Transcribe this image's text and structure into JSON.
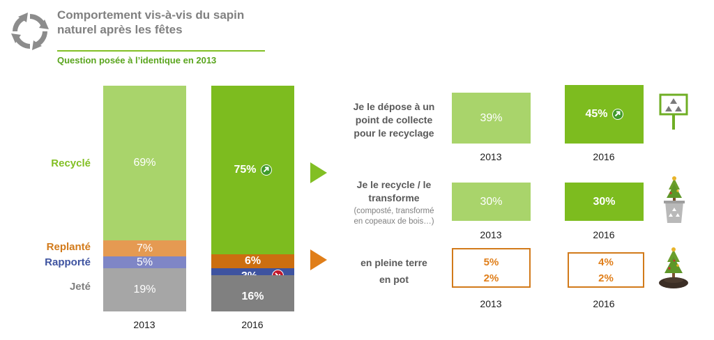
{
  "header": {
    "title_line1": "Comportement vis-à-vis du sapin",
    "title_line2": "naturel après les fêtes",
    "subtitle": "Question posée à l’identique en 2013"
  },
  "colors": {
    "recycle_2013": "#a9d46b",
    "recycle_2016": "#7dbc1f",
    "replante_2013": "#e59a52",
    "replante_2016": "#cc6e10",
    "rapporte_2013": "#7f86c6",
    "rapporte_2016": "#3e53a0",
    "jete_2013": "#a6a6a6",
    "jete_2016": "#808080",
    "arrow_green": "#82bf24",
    "arrow_orange": "#e07e19",
    "badge_up": "#3f9a2a",
    "badge_down": "#c0162b"
  },
  "chart_data": [
    {
      "type": "bar",
      "stacked": true,
      "categories": [
        "2013",
        "2016"
      ],
      "series": [
        {
          "name": "Jeté",
          "values": [
            19,
            16
          ],
          "labels": [
            "19%",
            "16%"
          ]
        },
        {
          "name": "Rapporté",
          "values": [
            5,
            3
          ],
          "labels": [
            "5%",
            "3%"
          ]
        },
        {
          "name": "Replanté",
          "values": [
            7,
            6
          ],
          "labels": [
            "7%",
            "6%"
          ]
        },
        {
          "name": "Recyclé",
          "values": [
            69,
            75
          ],
          "labels": [
            "69%",
            "75%"
          ]
        }
      ],
      "trends": {
        "recycle_2016": "up",
        "rapporte_2016": "down"
      },
      "ylim": [
        0,
        100
      ]
    },
    {
      "type": "table",
      "columns": [
        "2013",
        "2016"
      ],
      "rows": [
        {
          "label_lines": [
            "Je le dépose à un",
            "point de collecte",
            "pour le recyclage"
          ],
          "values": [
            "39%",
            "45%"
          ],
          "trend_2016": "up",
          "icon": "recycling-sign-icon"
        },
        {
          "label_lines": [
            "Je le recycle / le",
            "transforme"
          ],
          "note_lines": [
            "(composté, transformé",
            "en copeaux de bois…)"
          ],
          "values": [
            "30%",
            "30%"
          ],
          "icon": "tree-recycle-bin-icon"
        },
        {
          "label_lines": [
            "en pleine terre",
            "en pot"
          ],
          "values_line1": [
            "5%",
            "4%"
          ],
          "values_line2": [
            "2%",
            "2%"
          ],
          "icon": "planted-tree-icon"
        }
      ]
    }
  ]
}
